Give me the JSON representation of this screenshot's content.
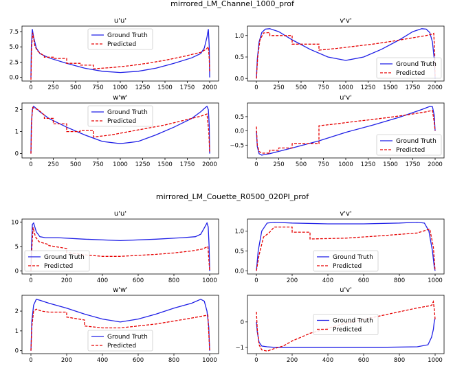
{
  "figures": [
    {
      "title": "mirrored_LM_Channel_1000_prof"
    },
    {
      "title": "mirrored_LM_Couette_R0500_020PI_prof"
    }
  ],
  "colors": {
    "ground_truth": "#1f1fe6",
    "predicted": "#e60000"
  },
  "chart_data": [
    {
      "figure": 0,
      "type": "line",
      "title": "u'u'",
      "xlim": [
        -100,
        2100
      ],
      "ylim": [
        -0.6,
        8.4
      ],
      "xticks": [
        0,
        250,
        500,
        750,
        1000,
        1250,
        1500,
        1750,
        2000
      ],
      "yticks": [
        0.0,
        2.5,
        5.0,
        7.5
      ],
      "ytick_labels": [
        "0.0",
        "2.5",
        "5.0",
        "7.5"
      ],
      "legend": "top-center",
      "series": [
        {
          "name": "Ground Truth",
          "style": "solid",
          "x": [
            0,
            5,
            15,
            30,
            60,
            100,
            200,
            400,
            600,
            800,
            1000,
            1200,
            1400,
            1600,
            1800,
            1900,
            1940,
            1970,
            1985,
            1995,
            2000
          ],
          "y": [
            0.0,
            5.0,
            7.9,
            6.6,
            4.8,
            3.9,
            3.2,
            2.3,
            1.5,
            1.0,
            0.8,
            1.0,
            1.5,
            2.3,
            3.2,
            3.9,
            4.8,
            6.6,
            7.9,
            5.0,
            0.0
          ]
        },
        {
          "name": "Predicted",
          "style": "dashed",
          "x": [
            0,
            8,
            20,
            45,
            70,
            100,
            150,
            150,
            250,
            250,
            400,
            400,
            550,
            550,
            700,
            700,
            900,
            1100,
            1300,
            1500,
            1700,
            1900,
            1960,
            1985,
            1995,
            2000
          ],
          "y": [
            -0.4,
            5.0,
            7.3,
            5.1,
            4.4,
            4.0,
            3.5,
            3.3,
            3.3,
            3.1,
            3.1,
            2.3,
            2.3,
            2.0,
            2.0,
            1.4,
            1.6,
            1.9,
            2.3,
            2.8,
            3.4,
            4.1,
            4.6,
            5.0,
            3.0,
            1.0
          ]
        }
      ]
    },
    {
      "figure": 0,
      "type": "line",
      "title": "v'v'",
      "xlim": [
        -100,
        2100
      ],
      "ylim": [
        -0.06,
        1.22
      ],
      "xticks": [
        0,
        250,
        500,
        750,
        1000,
        1250,
        1500,
        1750,
        2000
      ],
      "yticks": [
        0.0,
        0.5,
        1.0
      ],
      "ytick_labels": [
        "0.0",
        "0.5",
        "1.0"
      ],
      "legend": "lower-right",
      "series": [
        {
          "name": "Ground Truth",
          "style": "solid",
          "x": [
            0,
            10,
            30,
            60,
            100,
            150,
            250,
            400,
            600,
            800,
            1000,
            1200,
            1400,
            1600,
            1750,
            1850,
            1900,
            1940,
            1970,
            1990,
            2000
          ],
          "y": [
            0.0,
            0.45,
            0.85,
            1.07,
            1.15,
            1.16,
            1.09,
            0.9,
            0.68,
            0.5,
            0.42,
            0.5,
            0.68,
            0.9,
            1.09,
            1.16,
            1.15,
            1.07,
            0.85,
            0.45,
            0.0
          ]
        },
        {
          "name": "Predicted",
          "style": "dashed",
          "x": [
            0,
            15,
            40,
            80,
            150,
            150,
            400,
            400,
            700,
            700,
            900,
            1100,
            1300,
            1500,
            1700,
            1900,
            1960,
            1985,
            1995,
            2000
          ],
          "y": [
            0.0,
            0.5,
            0.9,
            1.06,
            1.07,
            1.0,
            1.0,
            0.8,
            0.8,
            0.66,
            0.7,
            0.75,
            0.8,
            0.86,
            0.93,
            1.0,
            1.03,
            1.05,
            0.6,
            0.05
          ]
        }
      ]
    },
    {
      "figure": 0,
      "type": "line",
      "title": "w'w'",
      "xlim": [
        -100,
        2100
      ],
      "ylim": [
        -0.2,
        2.3
      ],
      "xticks": [
        0,
        250,
        500,
        750,
        1000,
        1250,
        1500,
        1750,
        2000
      ],
      "yticks": [
        0,
        1,
        2
      ],
      "ytick_labels": [
        "0",
        "1",
        "2"
      ],
      "legend": "top-center",
      "series": [
        {
          "name": "Ground Truth",
          "style": "solid",
          "x": [
            0,
            5,
            15,
            30,
            60,
            100,
            200,
            400,
            600,
            800,
            1000,
            1200,
            1400,
            1600,
            1800,
            1900,
            1940,
            1970,
            1985,
            1995,
            2000
          ],
          "y": [
            0.0,
            1.3,
            2.0,
            2.15,
            2.05,
            1.9,
            1.6,
            1.2,
            0.85,
            0.55,
            0.45,
            0.55,
            0.85,
            1.2,
            1.6,
            1.9,
            2.05,
            2.15,
            2.0,
            1.3,
            0.0
          ]
        },
        {
          "name": "Predicted",
          "style": "dashed",
          "x": [
            0,
            8,
            20,
            40,
            80,
            150,
            150,
            250,
            250,
            400,
            400,
            550,
            550,
            700,
            700,
            900,
            1100,
            1300,
            1500,
            1700,
            1900,
            1970,
            1990,
            2000
          ],
          "y": [
            0.0,
            1.5,
            2.1,
            2.05,
            2.0,
            1.75,
            1.6,
            1.6,
            1.35,
            1.35,
            1.0,
            1.0,
            1.05,
            1.05,
            0.75,
            0.85,
            1.0,
            1.15,
            1.3,
            1.5,
            1.7,
            1.8,
            1.0,
            0.05
          ]
        }
      ]
    },
    {
      "figure": 0,
      "type": "line",
      "title": "u'v'",
      "xlim": [
        -100,
        2100
      ],
      "ylim": [
        -0.95,
        0.98
      ],
      "xticks": [
        0,
        250,
        500,
        750,
        1000,
        1250,
        1500,
        1750,
        2000
      ],
      "yticks": [
        -0.5,
        0.0,
        0.5
      ],
      "ytick_labels": [
        "−0.5",
        "0.0",
        "0.5"
      ],
      "legend": "lower-right",
      "series": [
        {
          "name": "Ground Truth",
          "style": "solid",
          "x": [
            0,
            10,
            30,
            60,
            150,
            400,
            700,
            1000,
            1300,
            1600,
            1850,
            1940,
            1970,
            1990,
            2000
          ],
          "y": [
            0.0,
            -0.55,
            -0.8,
            -0.85,
            -0.8,
            -0.6,
            -0.35,
            -0.05,
            0.2,
            0.48,
            0.75,
            0.86,
            0.85,
            0.55,
            0.0
          ]
        },
        {
          "name": "Predicted",
          "style": "dashed",
          "x": [
            0,
            10,
            30,
            60,
            150,
            150,
            250,
            250,
            400,
            400,
            550,
            550,
            700,
            700,
            900,
            1100,
            1300,
            1500,
            1700,
            1900,
            1970,
            1990,
            2000
          ],
          "y": [
            0.15,
            -0.5,
            -0.72,
            -0.78,
            -0.78,
            -0.68,
            -0.68,
            -0.6,
            -0.6,
            -0.45,
            -0.45,
            -0.45,
            -0.45,
            0.18,
            0.25,
            0.33,
            0.4,
            0.48,
            0.57,
            0.67,
            0.72,
            0.3,
            0.0
          ]
        }
      ]
    },
    {
      "figure": 1,
      "type": "line",
      "title": "u'u'",
      "xlim": [
        -50,
        1050
      ],
      "ylim": [
        -0.6,
        10.6
      ],
      "xticks": [
        0,
        200,
        400,
        600,
        800,
        1000
      ],
      "yticks": [
        0,
        5,
        10
      ],
      "ytick_labels": [
        "0",
        "5",
        "10"
      ],
      "legend": "lower-left",
      "series": [
        {
          "name": "Ground Truth",
          "style": "solid",
          "x": [
            0,
            3,
            8,
            15,
            30,
            50,
            80,
            150,
            300,
            500,
            700,
            850,
            920,
            950,
            970,
            985,
            992,
            997,
            1000
          ],
          "y": [
            0.0,
            5.0,
            9.5,
            9.8,
            8.0,
            7.0,
            6.8,
            6.8,
            6.5,
            6.2,
            6.5,
            6.8,
            7.0,
            7.5,
            8.8,
            9.8,
            9.0,
            5.0,
            0.0
          ]
        },
        {
          "name": "Predicted",
          "style": "dashed",
          "x": [
            0,
            5,
            12,
            25,
            45,
            60,
            100,
            100,
            200,
            200,
            300,
            400,
            500,
            600,
            700,
            800,
            900,
            960,
            990,
            1000
          ],
          "y": [
            0.0,
            4.5,
            8.9,
            7.0,
            6.0,
            5.8,
            5.4,
            5.2,
            4.6,
            3.8,
            3.3,
            3.0,
            3.0,
            3.2,
            3.4,
            3.7,
            4.1,
            4.5,
            5.0,
            0.2
          ]
        }
      ]
    },
    {
      "figure": 1,
      "type": "line",
      "title": "v'v'",
      "xlim": [
        -50,
        1050
      ],
      "ylim": [
        -0.08,
        1.3
      ],
      "xticks": [
        0,
        200,
        400,
        600,
        800,
        1000
      ],
      "yticks": [
        0.0,
        0.5,
        1.0
      ],
      "ytick_labels": [
        "0.0",
        "0.5",
        "1.0"
      ],
      "legend": "lower-center",
      "series": [
        {
          "name": "Ground Truth",
          "style": "solid",
          "x": [
            0,
            10,
            30,
            60,
            100,
            200,
            400,
            600,
            800,
            900,
            940,
            965,
            985,
            995,
            1000
          ],
          "y": [
            0.0,
            0.5,
            1.0,
            1.2,
            1.22,
            1.2,
            1.18,
            1.18,
            1.2,
            1.22,
            1.2,
            1.0,
            0.5,
            0.1,
            0.0
          ]
        },
        {
          "name": "Predicted",
          "style": "dashed",
          "x": [
            0,
            15,
            40,
            70,
            100,
            200,
            200,
            300,
            300,
            500,
            700,
            900,
            970,
            990,
            1000
          ],
          "y": [
            0.0,
            0.4,
            0.85,
            0.95,
            1.1,
            1.1,
            0.97,
            0.97,
            0.8,
            0.82,
            0.88,
            0.95,
            1.05,
            0.6,
            0.0
          ]
        }
      ]
    },
    {
      "figure": 1,
      "type": "line",
      "title": "w'w'",
      "xlim": [
        -50,
        1050
      ],
      "ylim": [
        -0.15,
        2.8
      ],
      "xticks": [
        0,
        200,
        400,
        600,
        800,
        1000
      ],
      "yticks": [
        0,
        1,
        2
      ],
      "ytick_labels": [
        "0",
        "1",
        "2"
      ],
      "legend": "lower-center",
      "series": [
        {
          "name": "Ground Truth",
          "style": "solid",
          "x": [
            0,
            5,
            15,
            30,
            50,
            100,
            200,
            300,
            400,
            500,
            600,
            700,
            800,
            900,
            950,
            970,
            985,
            995,
            1000
          ],
          "y": [
            0.0,
            1.5,
            2.3,
            2.6,
            2.55,
            2.4,
            2.15,
            1.85,
            1.6,
            1.45,
            1.6,
            1.85,
            2.15,
            2.4,
            2.6,
            2.5,
            2.0,
            1.2,
            0.0
          ]
        },
        {
          "name": "Predicted",
          "style": "dashed",
          "x": [
            0,
            5,
            15,
            30,
            60,
            100,
            100,
            200,
            200,
            300,
            300,
            400,
            500,
            600,
            700,
            800,
            900,
            960,
            990,
            1000
          ],
          "y": [
            0.0,
            1.2,
            2.0,
            2.1,
            2.0,
            1.95,
            1.95,
            1.95,
            1.7,
            1.55,
            1.25,
            1.15,
            1.15,
            1.25,
            1.35,
            1.5,
            1.65,
            1.75,
            1.8,
            0.0
          ]
        }
      ]
    },
    {
      "figure": 1,
      "type": "line",
      "title": "u'v'",
      "xlim": [
        -50,
        1050
      ],
      "ylim": [
        -1.25,
        1.05
      ],
      "xticks": [
        0,
        200,
        400,
        600,
        800,
        1000
      ],
      "yticks": [
        -1,
        0
      ],
      "ytick_labels": [
        "−1",
        "0"
      ],
      "legend": "center",
      "series": [
        {
          "name": "Ground Truth",
          "style": "solid",
          "x": [
            0,
            5,
            15,
            30,
            60,
            100,
            300,
            500,
            700,
            900,
            960,
            980,
            990,
            995,
            1000
          ],
          "y": [
            0.0,
            -0.4,
            -0.8,
            -0.95,
            -0.98,
            -1.0,
            -1.0,
            -1.0,
            -1.0,
            -0.98,
            -0.9,
            -0.6,
            -0.3,
            0.0,
            0.15
          ]
        },
        {
          "name": "Predicted",
          "style": "dashed",
          "x": [
            0,
            5,
            15,
            30,
            60,
            100,
            150,
            200,
            250,
            300,
            400,
            500,
            600,
            700,
            800,
            900,
            980,
            990,
            995,
            1000
          ],
          "y": [
            0.4,
            -0.3,
            -0.9,
            -1.1,
            -1.15,
            -1.05,
            -0.95,
            -0.75,
            -0.6,
            -0.45,
            -0.25,
            -0.05,
            0.1,
            0.25,
            0.4,
            0.55,
            0.65,
            0.8,
            0.5,
            0.1
          ]
        }
      ]
    }
  ]
}
